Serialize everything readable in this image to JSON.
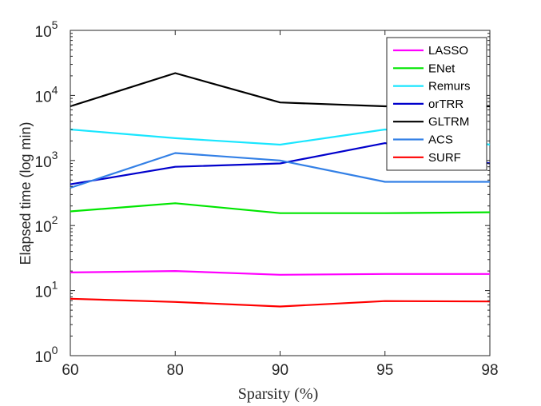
{
  "chart_data": {
    "type": "line",
    "xlabel": "Sparsity (%)",
    "ylabel": "Elapsed time (log min)",
    "categories": [
      "60",
      "80",
      "90",
      "95",
      "98"
    ],
    "y_scale": "log",
    "ylim": [
      1,
      100000
    ],
    "y_ticks": [
      {
        "value": 1,
        "base": "10",
        "exp": "0"
      },
      {
        "value": 10,
        "base": "10",
        "exp": "1"
      },
      {
        "value": 100,
        "base": "10",
        "exp": "2"
      },
      {
        "value": 1000,
        "base": "10",
        "exp": "3"
      },
      {
        "value": 10000,
        "base": "10",
        "exp": "4"
      },
      {
        "value": 100000,
        "base": "10",
        "exp": "5"
      }
    ],
    "grid": false,
    "legend_position": "top-right",
    "series": [
      {
        "name": "LASSO",
        "color": "#ff00ff",
        "values": [
          19,
          20,
          17.5,
          18,
          18
        ]
      },
      {
        "name": "ENet",
        "color": "#00e600",
        "values": [
          165,
          220,
          155,
          155,
          160
        ]
      },
      {
        "name": "Remurs",
        "color": "#19e6ff",
        "values": [
          3000,
          2200,
          1750,
          3000,
          1750
        ]
      },
      {
        "name": "orTRR",
        "color": "#0000cc",
        "values": [
          430,
          800,
          900,
          1850,
          900
        ]
      },
      {
        "name": "GLTRM",
        "color": "#000000",
        "values": [
          6800,
          22000,
          7800,
          6800,
          6800
        ]
      },
      {
        "name": "ACS",
        "color": "#3380e6",
        "values": [
          380,
          1300,
          1000,
          470,
          470
        ]
      },
      {
        "name": "SURF",
        "color": "#ff0000",
        "values": [
          7.5,
          6.7,
          5.7,
          6.9,
          6.8
        ]
      }
    ]
  }
}
